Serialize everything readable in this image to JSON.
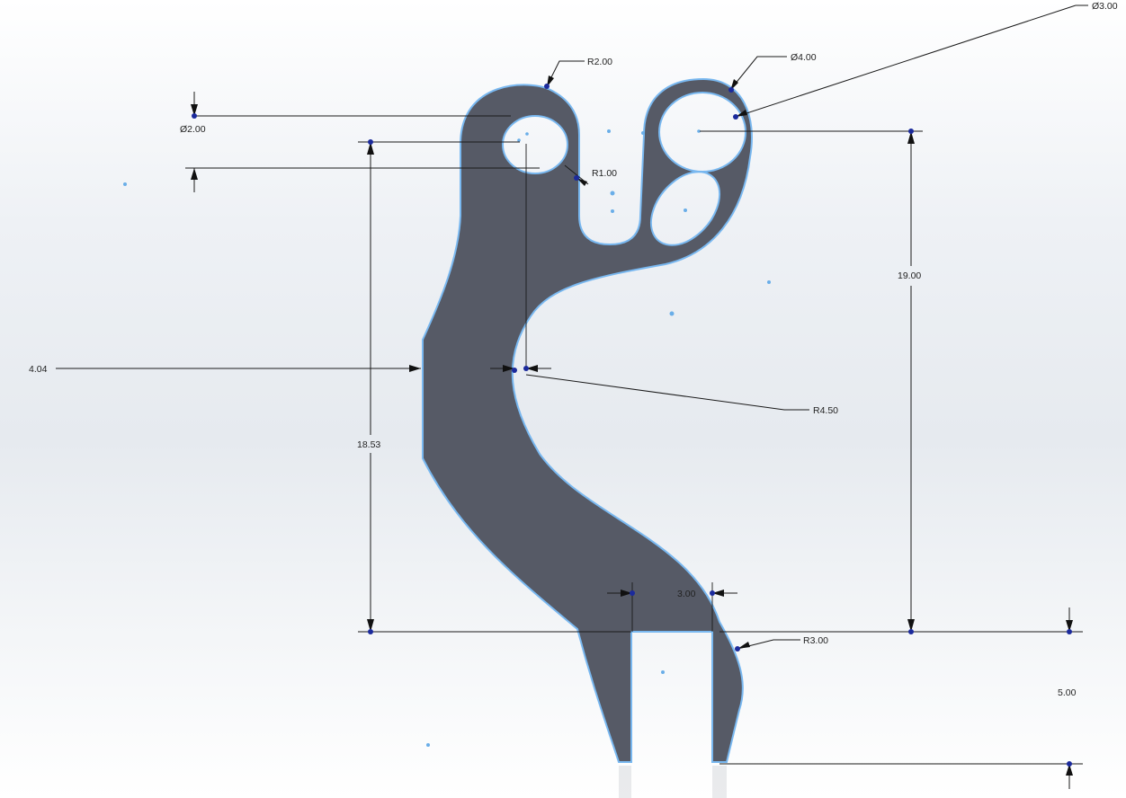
{
  "colors": {
    "part_fill": "#565a66",
    "part_edge": "#79b8f0",
    "node": "#1b2a9c",
    "dimension": "#1a1a1a"
  },
  "dimensions": {
    "dia_top_right": "Ø3.00",
    "dia_large_hole": "Ø4.00",
    "radius_top_left": "R2.00",
    "dia_small_hole": "Ø2.00",
    "radius_slot": "R1.00",
    "height_right": "19.00",
    "width_left": "4.04",
    "radius_curve": "R4.50",
    "height_left": "18.53",
    "gap_width": "3.00",
    "radius_bottom": "R3.00",
    "leg_height": "5.00"
  }
}
